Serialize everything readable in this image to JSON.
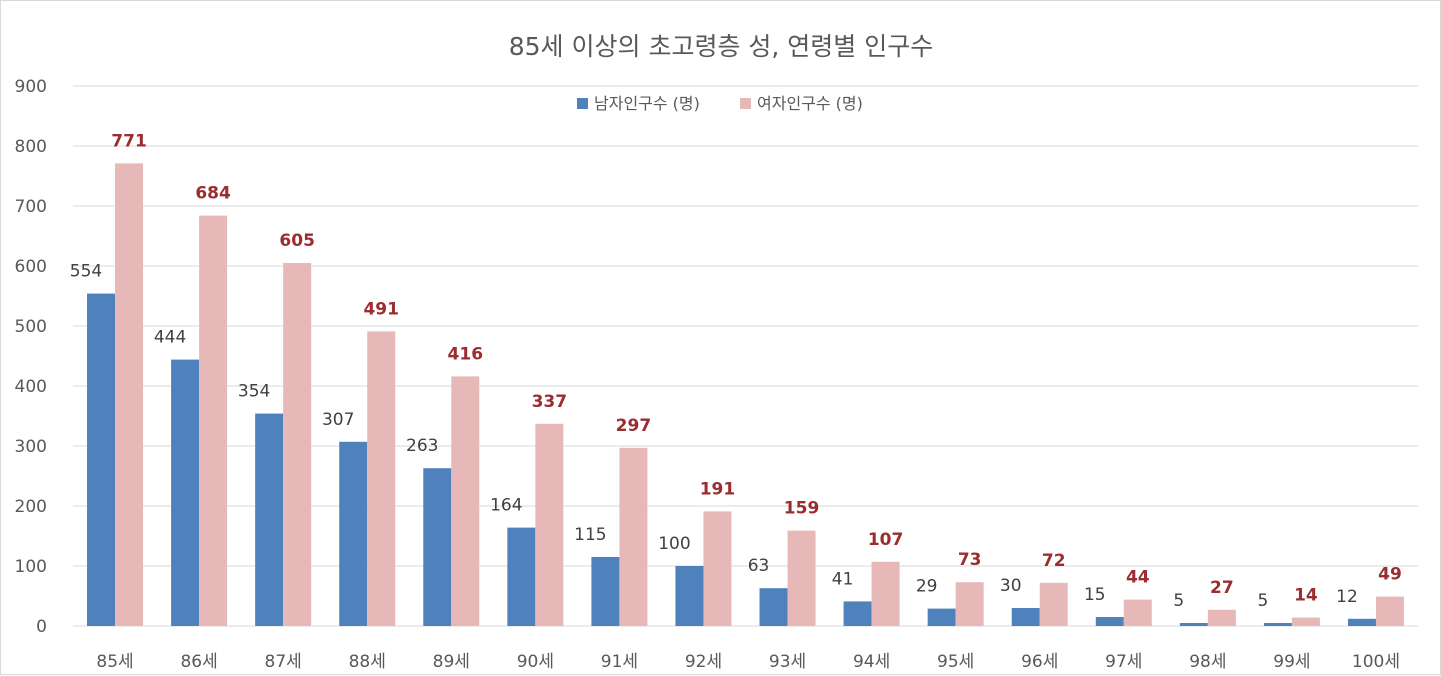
{
  "chart_data": {
    "type": "bar",
    "title": "85세 이상의 초고령층 성, 연령별 인구수",
    "categories": [
      "85세",
      "86세",
      "87세",
      "88세",
      "89세",
      "90세",
      "91세",
      "92세",
      "93세",
      "94세",
      "95세",
      "96세",
      "97세",
      "98세",
      "99세",
      "100세"
    ],
    "series": [
      {
        "name": "남자인구수 (명)",
        "color": "#4f81bd",
        "label_color": "#404040",
        "values": [
          554,
          444,
          354,
          307,
          263,
          164,
          115,
          100,
          63,
          41,
          29,
          30,
          15,
          5,
          5,
          12
        ]
      },
      {
        "name": "여자인구수 (명)",
        "color": "#e6b9b8",
        "label_color": "#9b2d30",
        "values": [
          771,
          684,
          605,
          491,
          416,
          337,
          297,
          191,
          159,
          107,
          73,
          72,
          44,
          27,
          14,
          49
        ]
      }
    ],
    "ylim": [
      0,
      900
    ],
    "yticks": [
      0,
      100,
      200,
      300,
      400,
      500,
      600,
      700,
      800,
      900
    ],
    "grid": true,
    "legend_position": "top-center"
  }
}
